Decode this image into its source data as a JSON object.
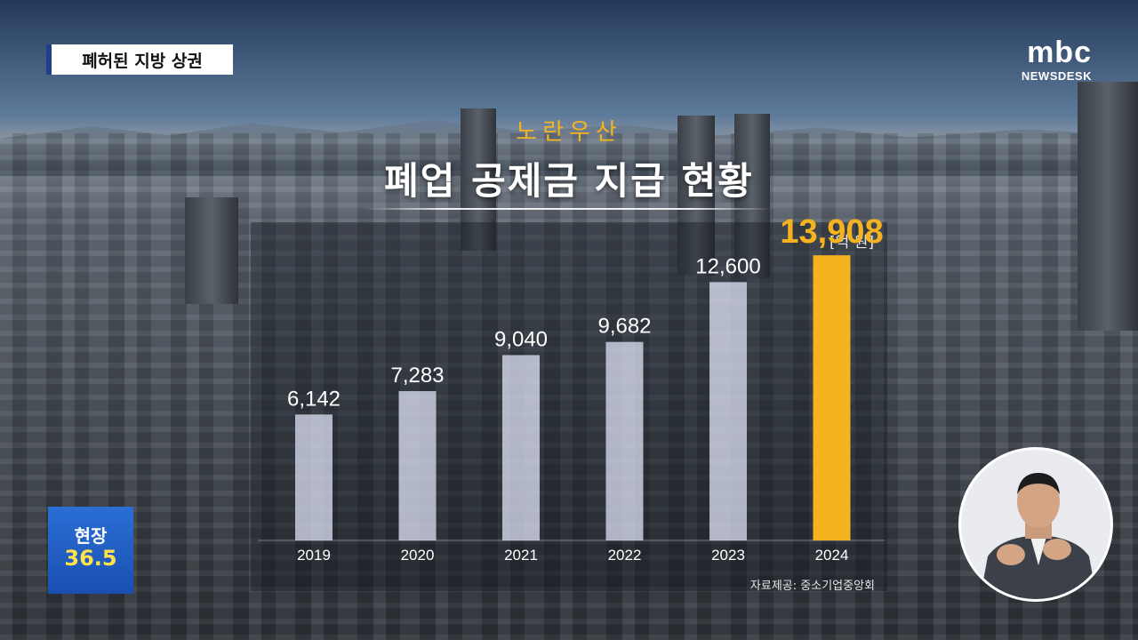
{
  "topic_badge": "폐허된 지방 상권",
  "logo": {
    "brand": "mbc",
    "program": "NEWSDESK"
  },
  "header": {
    "subtitle": "노란우산",
    "title": "폐업 공제금 지급 현황"
  },
  "chart_data": {
    "type": "bar",
    "unit_label": "[억 원]",
    "categories": [
      "2019",
      "2020",
      "2021",
      "2022",
      "2023",
      "2024"
    ],
    "values": [
      6142,
      7283,
      9040,
      9682,
      12600,
      13908
    ],
    "value_labels": [
      "6,142",
      "7,283",
      "9,040",
      "9,682",
      "12,600",
      "13,908"
    ],
    "ylim": [
      0,
      15000
    ],
    "highlight_index": 5,
    "colors": {
      "normal": "#e8ecff",
      "highlight": "#f5b320"
    }
  },
  "source": "자료제공: 중소기업중앙회",
  "live_badge": {
    "line1": "현장",
    "line2": "36.5"
  }
}
